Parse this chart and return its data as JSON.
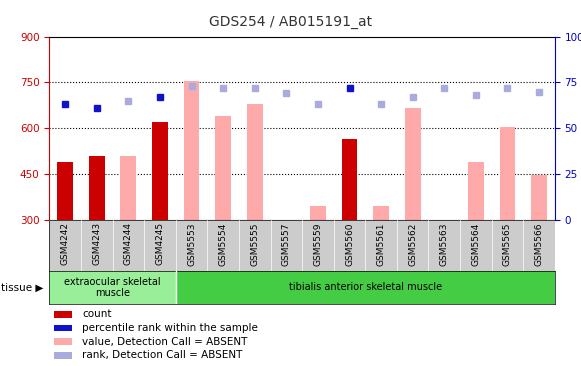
{
  "title": "GDS254 / AB015191_at",
  "categories": [
    "GSM4242",
    "GSM4243",
    "GSM4244",
    "GSM4245",
    "GSM5553",
    "GSM5554",
    "GSM5555",
    "GSM5557",
    "GSM5559",
    "GSM5560",
    "GSM5561",
    "GSM5562",
    "GSM5563",
    "GSM5564",
    "GSM5565",
    "GSM5566"
  ],
  "count_values": [
    490,
    510,
    null,
    620,
    null,
    null,
    null,
    null,
    null,
    565,
    null,
    null,
    null,
    null,
    null,
    null
  ],
  "value_absent_values": [
    null,
    null,
    510,
    null,
    755,
    640,
    680,
    null,
    345,
    null,
    345,
    665,
    null,
    490,
    605,
    445
  ],
  "rank_percent_blue": [
    63,
    61,
    null,
    67,
    null,
    null,
    null,
    null,
    null,
    72,
    null,
    null,
    null,
    null,
    null,
    null
  ],
  "rank_absent_values": [
    null,
    null,
    65,
    null,
    73,
    72,
    72,
    69,
    63,
    null,
    63,
    67,
    72,
    68,
    72,
    70
  ],
  "ylim": [
    300,
    900
  ],
  "yticks": [
    300,
    450,
    600,
    750,
    900
  ],
  "y2ticks": [
    0,
    25,
    50,
    75,
    100
  ],
  "bar_color_dark": "#cc0000",
  "bar_color_light": "#ffaaaa",
  "dot_color_dark": "#1111cc",
  "dot_color_light": "#aaaadd",
  "axis_left_color": "#cc0000",
  "axis_right_color": "#0000cc",
  "tissue_bg1": "#99ee99",
  "tissue_bg2": "#44cc44",
  "xtick_bg": "#cccccc"
}
